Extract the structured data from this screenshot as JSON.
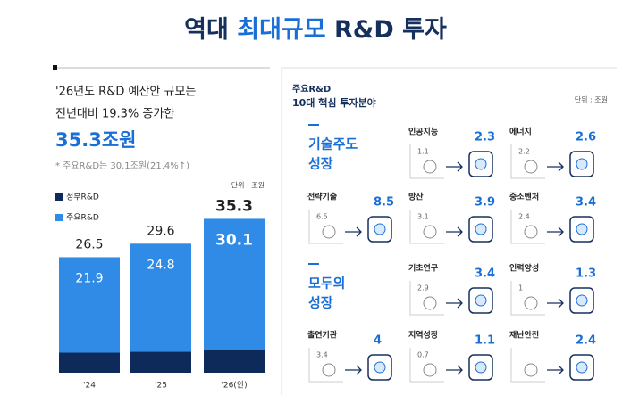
{
  "title": {
    "pre": "역대",
    "highlight": "최대규모",
    "post": "R&D 투자"
  },
  "intro": {
    "line1": "'26년도 R&D 예산안 규모는",
    "line2": "전년대비 19.3% 증가한",
    "amount": "35.3조원",
    "note": "* 주요R&D는 30.1조원(21.4%↑)"
  },
  "chart_data": {
    "type": "stacked_bar",
    "unit": "단위 : 조원",
    "categories": [
      "'24",
      "'25",
      "'26(안)"
    ],
    "series": [
      {
        "name": "정부R&D",
        "color": "#0d2a5a",
        "values": [
          4.6,
          4.8,
          5.2
        ]
      },
      {
        "name": "주요R&D",
        "color": "#2f8be6",
        "values": [
          21.9,
          24.8,
          30.1
        ]
      }
    ],
    "totals": [
      26.5,
      29.6,
      35.3
    ],
    "ylim": [
      0,
      36
    ]
  },
  "panel": {
    "title1": "주요R&D",
    "title2": "10대 핵심 투자분야",
    "unit": "단위 : 조원",
    "groups": [
      {
        "line1": "기술주도",
        "line2": "성장"
      },
      {
        "line1": "모두의",
        "line2": "성장"
      }
    ],
    "items": [
      {
        "name": "인공지능",
        "before": 1.1,
        "after": 2.3
      },
      {
        "name": "에너지",
        "before": 2.2,
        "after": 2.6
      },
      {
        "name": "전략기술",
        "before": 6.5,
        "after": 8.5
      },
      {
        "name": "방산",
        "before": 3.1,
        "after": 3.9
      },
      {
        "name": "중소벤처",
        "before": 2.4,
        "after": 3.4
      },
      {
        "name": "기초연구",
        "before": 2.9,
        "after": 3.4
      },
      {
        "name": "인력양성",
        "before": 1.0,
        "after": 1.3
      },
      {
        "name": "출연기관",
        "before": 3.4,
        "after": 4.0
      },
      {
        "name": "지역성장",
        "before": 0.7,
        "after": 1.1
      },
      {
        "name": "재난안전",
        "before": null,
        "after": 2.4
      }
    ]
  }
}
